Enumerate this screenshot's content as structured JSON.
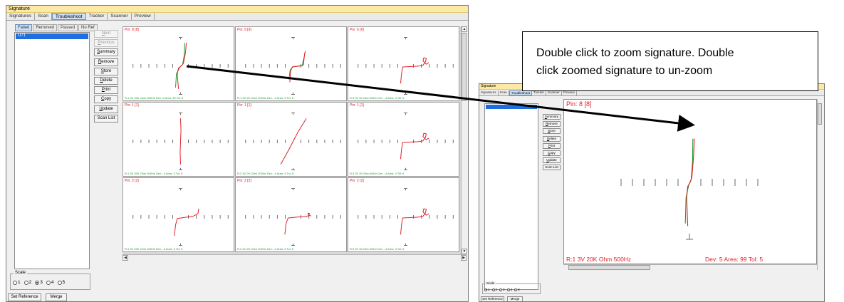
{
  "main_window": {
    "title": "Signature",
    "tabs": [
      "Signatures",
      "Scan",
      "Troubleshoot",
      "Tracker",
      "Scanner",
      "Preview"
    ],
    "active_tab": "Troubleshoot",
    "subtabs": [
      "Failed",
      "Removed",
      "Passed",
      "No Ref"
    ],
    "active_subtab": "Failed",
    "list_item": "U71",
    "buttons": [
      {
        "ul": "N",
        "rest": "ext",
        "disabled": true
      },
      {
        "ul": "P",
        "rest": "revious",
        "disabled": true
      },
      {
        "ul": "S",
        "rest": "ummary",
        "disabled": false
      },
      {
        "ul": "R",
        "rest": "emove",
        "disabled": false
      },
      {
        "ul": "S",
        "rest": "tore",
        "disabled": false
      },
      {
        "ul": "D",
        "rest": "elete",
        "disabled": false
      },
      {
        "ul": "P",
        "rest": "rint",
        "disabled": false
      },
      {
        "ul": "C",
        "rest": "opy",
        "disabled": false
      },
      {
        "ul": "U",
        "rest": "pdate",
        "disabled": false
      },
      {
        "ul": "",
        "rest": "Scan List",
        "disabled": false
      }
    ],
    "scale_label": "Scale",
    "scale_options": [
      "1",
      "2",
      "3",
      "4",
      "5"
    ],
    "scale_selected": "3",
    "set_reference_label": "Set Reference",
    "merge_label": "Merge",
    "cells": [
      {
        "pin": "Pin: 8 [8]",
        "info": "R:1 3V 20K Ohm 500Hz       Dev: 5 Area: 99 Tol: 5",
        "curve": "s_green"
      },
      {
        "pin": "Pin: 9 [9]",
        "info": "R:1 3V 2K Ohm 200Hz       Dev: -4 Area: 3 Tol: 5",
        "curve": "knee_green"
      },
      {
        "pin": "Pin: 6 [6]",
        "info": "R:3 3V 50 Ohm 60Hz       Dev: -4 Area: 3 Tol: 5",
        "curve": "knee_loop"
      },
      {
        "pin": "Pin: 1 [1]",
        "info": "R:1 3V 20K Ohm 500Hz       Dev: -4 Area: 3 Tol: 5",
        "curve": "vertical"
      },
      {
        "pin": "Pin: 1 [1]",
        "info": "R:2 3V 2K Ohm 200Hz       Dev: -4 Area: 3 Tol: 5",
        "curve": "diagonal"
      },
      {
        "pin": "Pin: 1 [1]",
        "info": "R:3 3V 50 Ohm 60Hz       Dev: -4 Area: 3 Tol: 5",
        "curve": "knee_loop"
      },
      {
        "pin": "Pin: 2 [2]",
        "info": "R:1 3V 20K Ohm 500Hz       Dev: -4 Area: 3 Tol: 5",
        "curve": "knee"
      },
      {
        "pin": "Pin: 2 [2]",
        "info": "R:2 3V 2K Ohm 200Hz       Dev: -4 Area: 3 Tol: 5",
        "curve": "knee_flat"
      },
      {
        "pin": "Pin: 2 [2]",
        "info": "R:3 3V 50 Ohm 60Hz       Dev: -4 Area: 3 Tol: 5",
        "curve": "knee_loop"
      }
    ]
  },
  "zoom_window": {
    "title": "Signature",
    "tabs": [
      "Signatures",
      "Scan",
      "Troubleshoot",
      "Tracker",
      "Scanner",
      "Preview"
    ],
    "active_tab": "Troubleshoot",
    "buttons": [
      {
        "ul": "S",
        "rest": "ummary"
      },
      {
        "ul": "R",
        "rest": "emove"
      },
      {
        "ul": "S",
        "rest": "tore"
      },
      {
        "ul": "D",
        "rest": "elete"
      },
      {
        "ul": "P",
        "rest": "rint"
      },
      {
        "ul": "C",
        "rest": "opy"
      },
      {
        "ul": "U",
        "rest": "pdate"
      },
      {
        "ul": "",
        "rest": "Scan List"
      }
    ],
    "scale_label": "Scale",
    "scale_options": [
      "1",
      "2",
      "3",
      "4",
      "5"
    ],
    "scale_selected": "1",
    "set_reference_label": "Set Reference",
    "merge_label": "Merge",
    "pin": "Pin: 8 [8]",
    "info_left": "R:1 3V 20K Ohm 500Hz",
    "info_right": "Dev: 5 Area: 99 Tol: 5"
  },
  "callout": {
    "line1": "Double click to zoom signature. Double",
    "line2": "click zoomed signature to un-zoom"
  },
  "colors": {
    "title_bar": "#fde9a6",
    "reference_trace": "#1d9a2e",
    "measured_trace": "#e0202a",
    "selection": "#1f6ee0"
  }
}
